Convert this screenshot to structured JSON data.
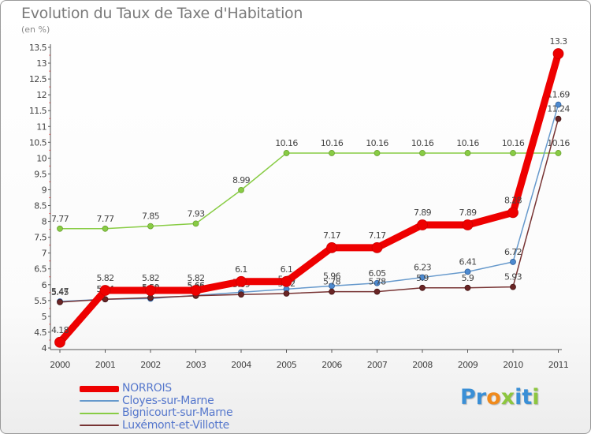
{
  "title": "Evolution du Taux de Taxe d'Habitation",
  "subtitle": "(en %)",
  "logo": {
    "text": "Proxiti",
    "letters": [
      {
        "ch": "P",
        "color": "#3a8fd6"
      },
      {
        "ch": "r",
        "color": "#3a8fd6"
      },
      {
        "ch": "o",
        "color": "#f08a1c"
      },
      {
        "ch": "x",
        "color": "#8dc63f"
      },
      {
        "ch": "i",
        "color": "#3a8fd6"
      },
      {
        "ch": "t",
        "color": "#3a8fd6"
      },
      {
        "ch": "i",
        "color": "#8dc63f"
      }
    ]
  },
  "chart_data": {
    "type": "line",
    "title": "Evolution du Taux de Taxe d'Habitation",
    "subtitle": "(en %)",
    "xlabel": "",
    "ylabel": "",
    "x": [
      "2000",
      "2001",
      "2002",
      "2003",
      "2004",
      "2005",
      "2006",
      "2007",
      "2008",
      "2009",
      "2010",
      "2011"
    ],
    "ylim": [
      4,
      13.5
    ],
    "y_ticks": [
      "4",
      "4.5",
      "5",
      "5.5",
      "6",
      "6.5",
      "7",
      "7.5",
      "8",
      "8.5",
      "9",
      "9.5",
      "10",
      "10.5",
      "11",
      "11.5",
      "12",
      "12.5",
      "13",
      "13.5"
    ],
    "grid": false,
    "legend": "bottom-left",
    "series": [
      {
        "name": "Bignicourt-sur-Marne",
        "color": "#88cc44",
        "values": [
          7.77,
          7.77,
          7.85,
          7.93,
          8.99,
          10.16,
          10.16,
          10.16,
          10.16,
          10.16,
          10.16,
          10.16
        ],
        "labels": [
          "7.77",
          "7.77",
          "7.85",
          "7.93",
          "8.99",
          "10.16",
          "10.16",
          "10.16",
          "10.16",
          "10.16",
          "10.16",
          "10.16"
        ]
      },
      {
        "name": "Cloyes-sur-Marne",
        "color": "#6699cc",
        "values": [
          5.47,
          5.54,
          5.56,
          5.66,
          5.76,
          5.86,
          5.96,
          6.05,
          6.23,
          6.41,
          6.72,
          11.69
        ],
        "labels": [
          "5.47",
          "5.54",
          "5.56",
          "5.66",
          "5.76",
          "5.86",
          "5.96",
          "6.05",
          "6.23",
          "6.41",
          "6.72",
          "11.69"
        ]
      },
      {
        "name": "Luxémont-et-Villotte",
        "color": "#773333",
        "values": [
          5.45,
          5.54,
          5.59,
          5.65,
          5.69,
          5.72,
          5.78,
          5.78,
          5.9,
          5.9,
          5.93,
          11.24
        ],
        "labels": [
          "5.45",
          "5.54",
          "5.59",
          "5.65",
          "5.69",
          "5.72",
          "5.78",
          "5.78",
          "5.9",
          "5.9",
          "5.93",
          "11.24"
        ]
      },
      {
        "name": "NORROIS",
        "color": "#ee0000",
        "values": [
          4.18,
          5.82,
          5.82,
          5.82,
          6.1,
          6.1,
          7.17,
          7.17,
          7.89,
          7.89,
          8.28,
          13.3
        ],
        "labels": [
          "4.18",
          "5.82",
          "5.82",
          "5.82",
          "6.1",
          "6.1",
          "7.17",
          "7.17",
          "7.89",
          "7.89",
          "8.28",
          "13.3"
        ]
      }
    ]
  },
  "legend_items": [
    {
      "name": "NORROIS",
      "color": "#ee0000",
      "weight": 8
    },
    {
      "name": "Cloyes-sur-Marne",
      "color": "#6699cc",
      "weight": 2
    },
    {
      "name": "Bignicourt-sur-Marne",
      "color": "#88cc44",
      "weight": 2
    },
    {
      "name": "Luxémont-et-Villotte",
      "color": "#773333",
      "weight": 2
    }
  ]
}
